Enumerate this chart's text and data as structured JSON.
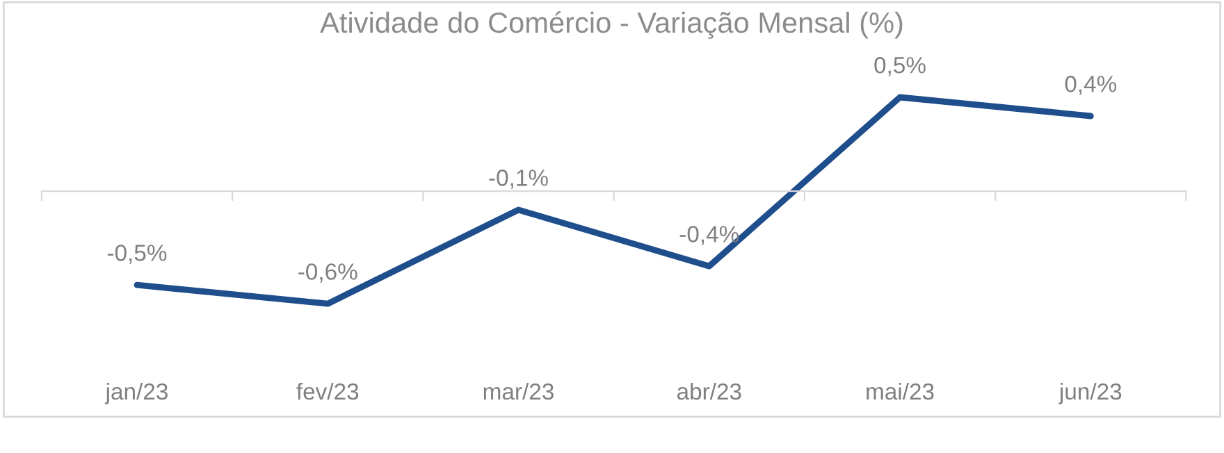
{
  "chart_data": {
    "type": "line",
    "title": "Atividade do Comércio - Variação Mensal (%)",
    "categories": [
      "jan/23",
      "fev/23",
      "mar/23",
      "abr/23",
      "mai/23",
      "jun/23"
    ],
    "series": [
      {
        "color": "#1f4e8c",
        "values": [
          -0.5,
          -0.6,
          -0.1,
          -0.4,
          0.5,
          0.4
        ],
        "value_labels": [
          "-0,5%",
          "-0,6%",
          "-0,1%",
          "-0,4%",
          "0,5%",
          "0,4%"
        ]
      }
    ],
    "grid": false,
    "legend": false,
    "marker": "none",
    "line_style": "solid"
  }
}
